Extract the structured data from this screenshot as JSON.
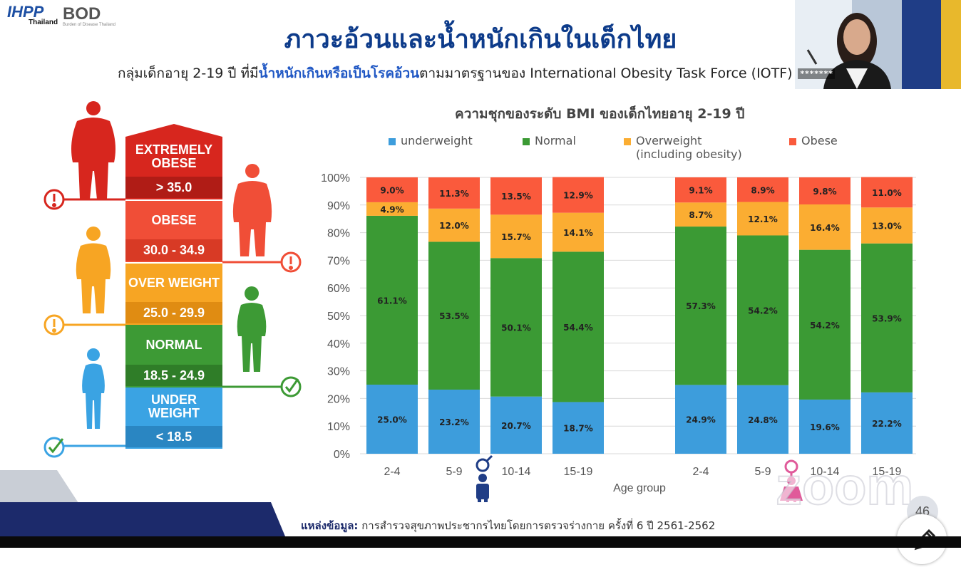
{
  "logos": {
    "ihpp": "IHPP",
    "ihpp_sub": "Thailand",
    "bod": "BOD",
    "bod_sub": "Burden of Disease Thailand"
  },
  "slide_title": "ภาวะอ้วนและน้ำหนักเกินในเด็กไทย",
  "subtitle": {
    "pre": "กลุ่มเด็กอายุ 2-19 ปี ที่มี",
    "highlight": "น้ำหนักเกินหรือเป็นโรคอ้วน",
    "post": "ตามมาตรฐานของ International Obesity Task Force (IOTF)"
  },
  "video_overlay_text": "*******",
  "bmi_scale": [
    {
      "label": "EXTREMELY OBESE",
      "range": "> 35.0",
      "color": "#d7261e",
      "range_color": "#b01c16"
    },
    {
      "label": "OBESE",
      "range": "30.0 - 34.9",
      "color": "#f04e37",
      "range_color": "#d83a25"
    },
    {
      "label": "OVER WEIGHT",
      "range": "25.0 - 29.9",
      "color": "#f7a523",
      "range_color": "#e08c12"
    },
    {
      "label": "NORMAL",
      "range": "18.5 - 24.9",
      "color": "#3d9a35",
      "range_color": "#2f7d28"
    },
    {
      "label": "UNDER WEIGHT",
      "range": "< 18.5",
      "color": "#3aa3e3",
      "range_color": "#2a86c2"
    }
  ],
  "chart_data": {
    "type": "bar",
    "stacked": true,
    "title": "ความชุกของระดับ BMI ของเด็กไทยอายุ 2-19 ปี",
    "xlabel": "Age group",
    "ylim": [
      0,
      100
    ],
    "yticks": [
      "0%",
      "10%",
      "20%",
      "30%",
      "40%",
      "50%",
      "60%",
      "70%",
      "80%",
      "90%",
      "100%"
    ],
    "categories": [
      "2-4",
      "5-9",
      "10-14",
      "15-19",
      "2-4",
      "5-9",
      "10-14",
      "15-19"
    ],
    "groups": [
      "male",
      "female"
    ],
    "legend_position": "top",
    "series": [
      {
        "name": "underweight",
        "color": "#3d9ddc",
        "values": [
          25.0,
          23.2,
          20.7,
          18.7,
          24.9,
          24.8,
          19.6,
          22.2
        ],
        "labels": [
          "25.0%",
          "23.2%",
          "20.7%",
          "18.7%",
          "24.9%",
          "24.8%",
          "19.6%",
          "22.2%"
        ]
      },
      {
        "name": "Normal",
        "color": "#3b9a34",
        "values": [
          61.1,
          53.5,
          50.1,
          54.4,
          57.3,
          54.2,
          54.2,
          53.9
        ],
        "labels": [
          "61.1%",
          "53.5%",
          "50.1%",
          "54.4%",
          "57.3%",
          "54.2%",
          "54.2%",
          "53.9%"
        ]
      },
      {
        "name": "Overweight (including obesity)",
        "name_lines": [
          "Overweight",
          "(including obesity)"
        ],
        "color": "#fbad32",
        "values": [
          4.9,
          12.0,
          15.7,
          14.1,
          8.7,
          12.1,
          16.4,
          13.0
        ],
        "labels": [
          "4.9%",
          "12.0%",
          "15.7%",
          "14.1%",
          "8.7%",
          "12.1%",
          "16.4%",
          "13.0%"
        ]
      },
      {
        "name": "Obese",
        "color": "#fa5a3c",
        "values": [
          9.0,
          11.3,
          13.5,
          12.9,
          9.1,
          8.9,
          9.8,
          11.0
        ],
        "labels": [
          "9.0%",
          "11.3%",
          "13.5%",
          "12.9%",
          "9.1%",
          "8.9%",
          "9.8%",
          "11.0%"
        ]
      }
    ]
  },
  "source": {
    "label": "แหล่งข้อมูล:",
    "text": "การสำรวจสุขภาพประชากรไทยโดยการตรวจร่างกาย ครั้งที่ 6 ปี 2561-2562"
  },
  "page_number": "46",
  "watermark": "zoom"
}
